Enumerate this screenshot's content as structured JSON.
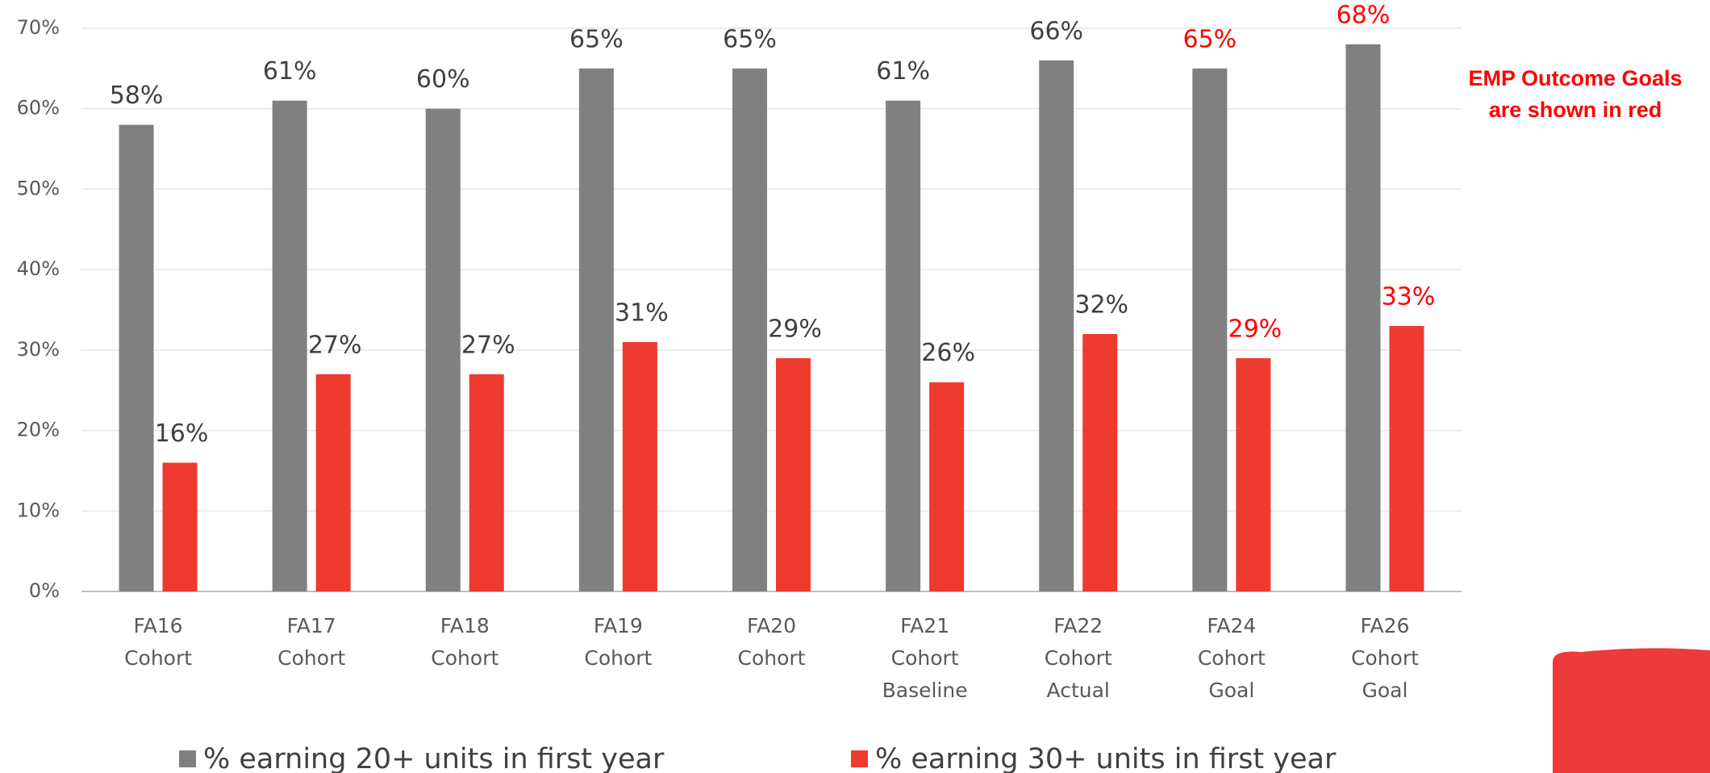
{
  "chart_data": {
    "type": "bar",
    "categories": [
      [
        "FA16",
        "Cohort"
      ],
      [
        "FA17",
        "Cohort"
      ],
      [
        "FA18",
        "Cohort"
      ],
      [
        "FA19",
        "Cohort"
      ],
      [
        "FA20",
        "Cohort"
      ],
      [
        "FA21",
        "Cohort",
        "Baseline"
      ],
      [
        "FA22",
        "Cohort",
        "Actual"
      ],
      [
        "FA24",
        "Cohort",
        "Goal"
      ],
      [
        "FA26",
        "Cohort",
        "Goal"
      ]
    ],
    "series": [
      {
        "name": "% earning 20+ units in first year",
        "color": "#808080",
        "values": [
          58,
          61,
          60,
          65,
          65,
          61,
          66,
          65,
          68
        ],
        "value_labels": [
          "58%",
          "61%",
          "60%",
          "65%",
          "65%",
          "61%",
          "66%",
          "65%",
          "68%"
        ],
        "label_colors": [
          "#404040",
          "#404040",
          "#404040",
          "#404040",
          "#404040",
          "#404040",
          "#404040",
          "#ff0000",
          "#ff0000"
        ]
      },
      {
        "name": "% earning 30+ units in first year",
        "color": "#ee3a2f",
        "values": [
          16,
          27,
          27,
          31,
          29,
          26,
          32,
          29,
          33
        ],
        "value_labels": [
          "16%",
          "27%",
          "27%",
          "31%",
          "29%",
          "26%",
          "32%",
          "29%",
          "33%"
        ],
        "label_colors": [
          "#404040",
          "#404040",
          "#404040",
          "#404040",
          "#404040",
          "#404040",
          "#404040",
          "#ff0000",
          "#ff0000"
        ]
      }
    ],
    "ylim": [
      0,
      70
    ],
    "yticks": [
      {
        "value": 0,
        "label": "0%"
      },
      {
        "value": 10,
        "label": "10%"
      },
      {
        "value": 20,
        "label": "20%"
      },
      {
        "value": 30,
        "label": "30%"
      },
      {
        "value": 40,
        "label": "40%"
      },
      {
        "value": 50,
        "label": "50%"
      },
      {
        "value": 60,
        "label": "60%"
      },
      {
        "value": 70,
        "label": "70%"
      }
    ],
    "grid": true,
    "annotation": [
      "EMP Outcome Goals",
      "are shown in red"
    ],
    "annotation_color": "#ff0000"
  }
}
